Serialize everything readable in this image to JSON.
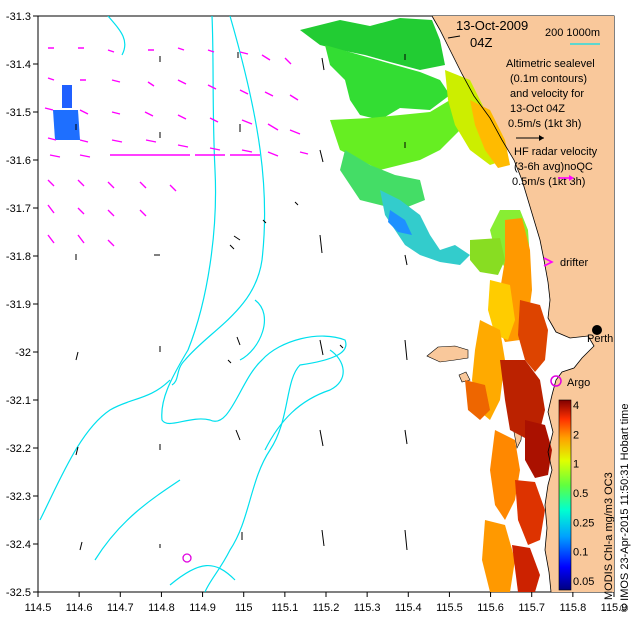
{
  "map": {
    "title_date": "13-Oct-2009",
    "title_time": "04Z",
    "lon_ticks": [
      "114.5",
      "114.6",
      "114.7",
      "114.8",
      "114.9",
      "115",
      "115.1",
      "115.2",
      "115.3",
      "115.4",
      "115.5",
      "115.6",
      "115.7",
      "115.8",
      "115.9"
    ],
    "lat_ticks": [
      "-31.3",
      "-31.4",
      "-31.5",
      "-31.6",
      "-31.7",
      "-31.8",
      "-31.9",
      "-32",
      "-32.1",
      "-32.2",
      "-32.3",
      "-32.4",
      "-32.5"
    ],
    "scale_label": "200   1000m",
    "altimetric_legend": [
      "Altimetric sealevel",
      "(0.1m contours)",
      "and velocity for",
      "13-Oct 04Z",
      "0.5m/s (1kt 3h)"
    ],
    "hf_legend": [
      "HF radar velocity",
      "(3-6h avg)noQC",
      "0.5m/s (1kt 3h)"
    ],
    "drifter_label": "drifter",
    "argo_label": "Argo",
    "perth_label": "Perth",
    "colorbar_ticks": [
      "4",
      "2",
      "1",
      "0.5",
      "0.25",
      "0.1",
      "0.05"
    ],
    "colorbar_label": "MODIS Chl-a mg/m3 OC3",
    "credit": "© IMOS 23-Apr-2015 11:50:31 Hobart time",
    "colors": {
      "land": "#f9c89b",
      "contour": "#00e0ee",
      "hf_arrow": "#ff00ff",
      "argo": "#e000e0"
    }
  }
}
